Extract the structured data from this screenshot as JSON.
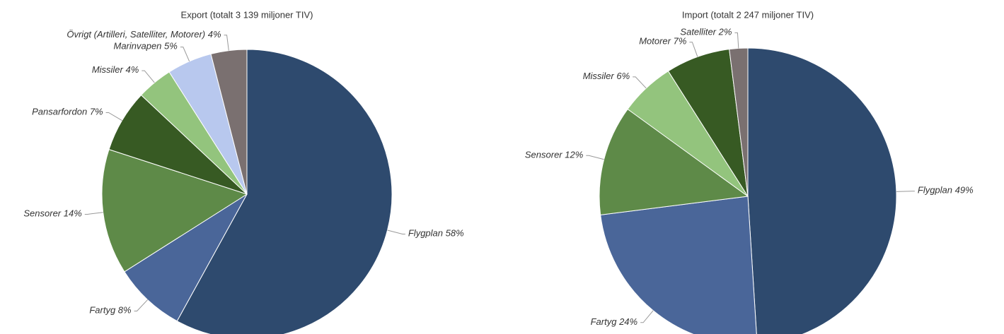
{
  "chart_data": [
    {
      "type": "pie",
      "title": "Export (totalt 3 139 miljoner TIV)",
      "categories": [
        "Flygplan",
        "Fartyg",
        "Sensorer",
        "Pansarfordon",
        "Missiler",
        "Marinvapen",
        "Övrigt (Artilleri, Satelliter, Motorer)"
      ],
      "values": [
        58,
        8,
        14,
        7,
        4,
        5,
        4
      ],
      "value_labels": [
        "58%",
        "8%",
        "14%",
        "7%",
        "4%",
        "5%",
        "4%"
      ],
      "colors": [
        "#2e4a6e",
        "#4a6699",
        "#5e8a48",
        "#375a23",
        "#93c47d",
        "#b8c8ee",
        "#7a7070"
      ]
    },
    {
      "type": "pie",
      "title": "Import (totalt 2 247 miljoner TIV)",
      "categories": [
        "Flygplan",
        "Fartyg",
        "Sensorer",
        "Missiler",
        "Motorer",
        "Satelliter"
      ],
      "values": [
        49,
        24,
        12,
        6,
        7,
        2
      ],
      "value_labels": [
        "49%",
        "24%",
        "12%",
        "6%",
        "7%",
        "2%"
      ],
      "colors": [
        "#2e4a6e",
        "#4a6699",
        "#5e8a48",
        "#93c47d",
        "#375a23",
        "#7a7070"
      ]
    }
  ]
}
